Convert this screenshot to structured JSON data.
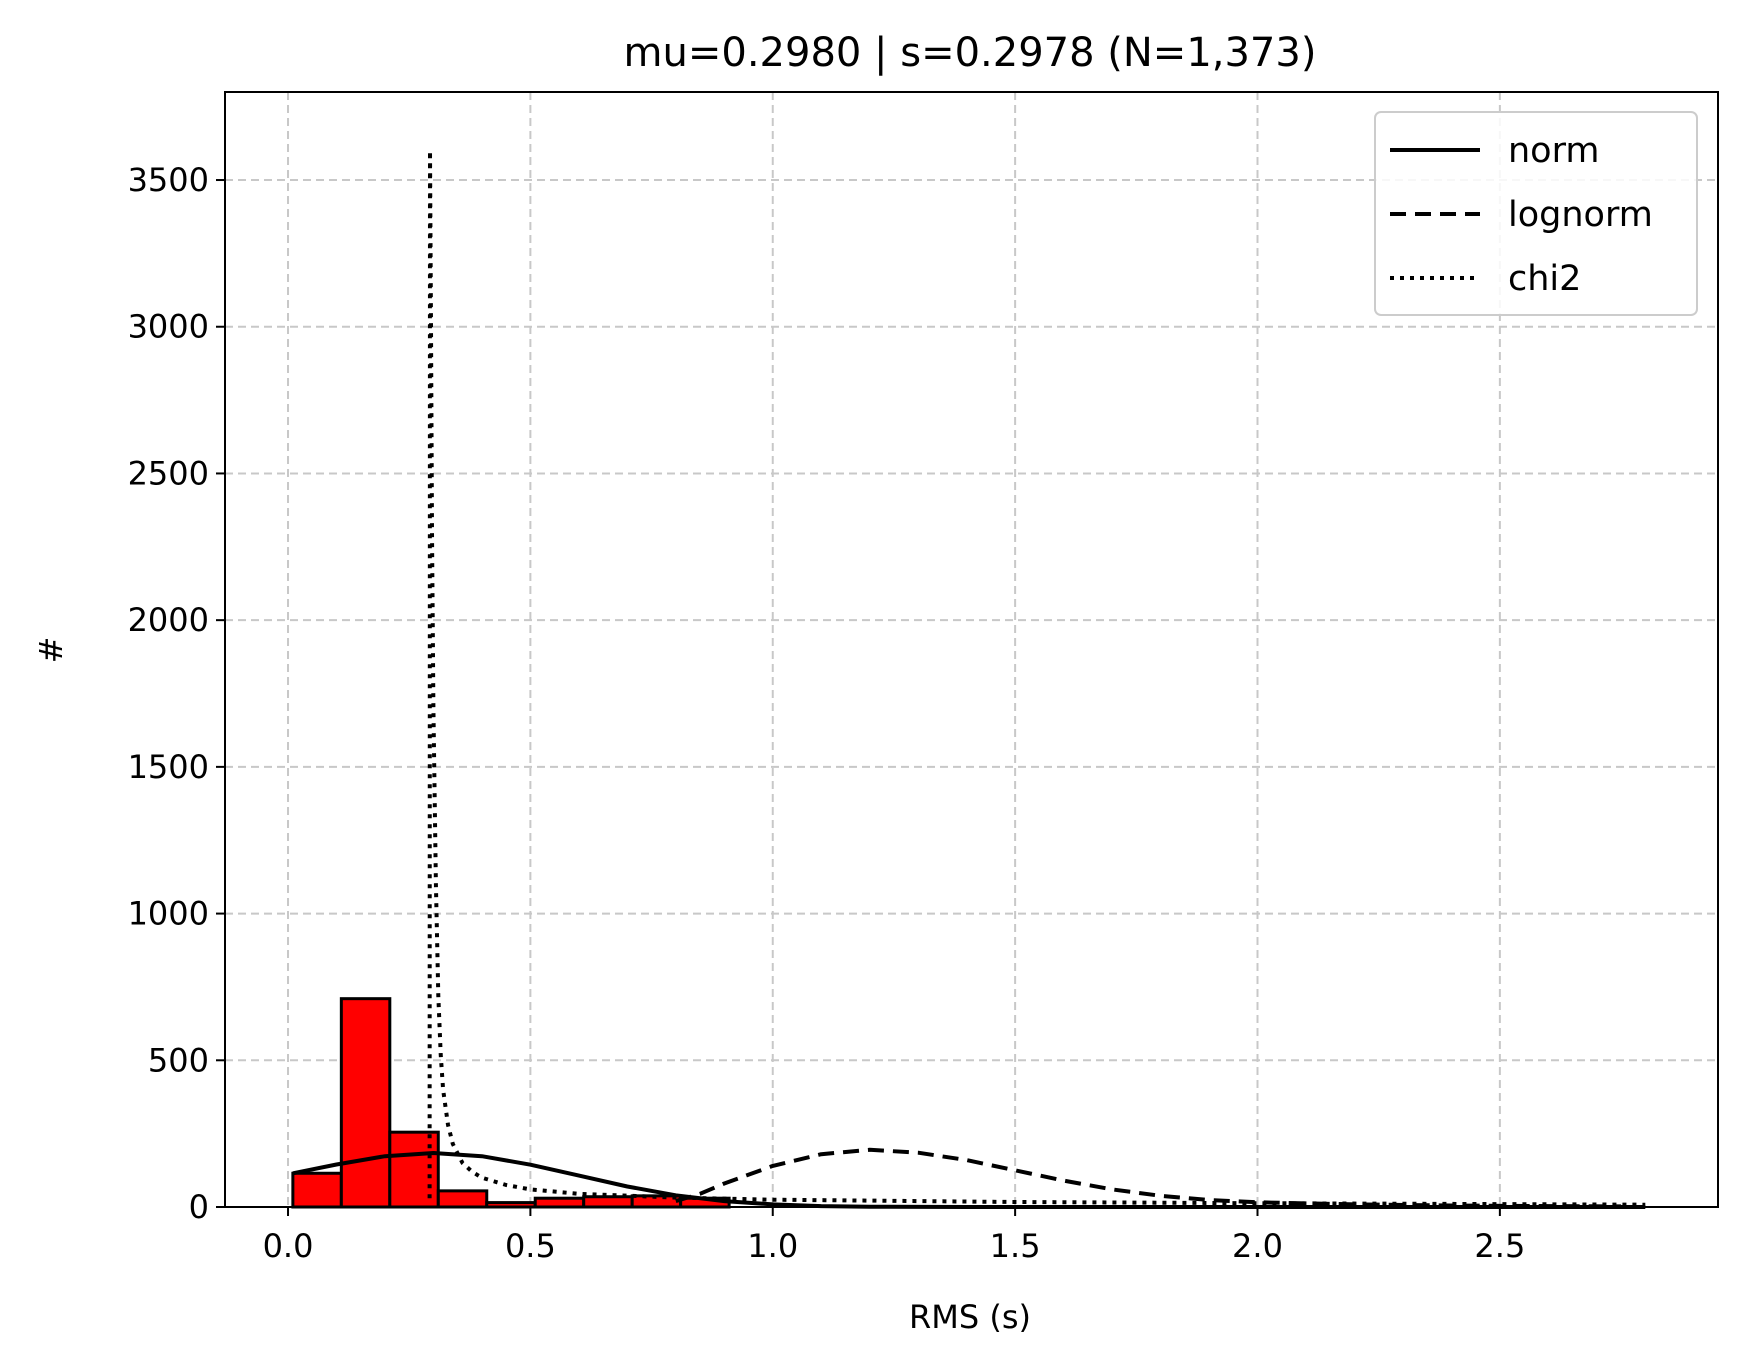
{
  "chart_data": {
    "type": "bar",
    "title": "mu=0.2980 | s=0.2978 (N=1,373)",
    "xlabel": "RMS (s)",
    "ylabel": "#",
    "xlim": [
      -0.13,
      2.95
    ],
    "ylim": [
      0,
      3800
    ],
    "xticks": [
      0.0,
      0.5,
      1.0,
      1.5,
      2.0,
      2.5
    ],
    "xtick_labels": [
      "0.0",
      "0.5",
      "1.0",
      "1.5",
      "2.0",
      "2.5"
    ],
    "yticks": [
      0,
      500,
      1000,
      1500,
      2000,
      2500,
      3000,
      3500
    ],
    "ytick_labels": [
      "0",
      "500",
      "1000",
      "1500",
      "2000",
      "2500",
      "3000",
      "3500"
    ],
    "grid": true,
    "legend_position": "top-right",
    "bar_color": "#ff0000",
    "bar_edge_color": "#000000",
    "histogram": {
      "bin_edges": [
        0.01,
        0.11,
        0.21,
        0.31,
        0.41,
        0.51,
        0.61,
        0.71,
        0.81,
        0.91
      ],
      "counts": [
        115,
        710,
        255,
        55,
        15,
        30,
        35,
        38,
        30
      ]
    },
    "series": [
      {
        "name": "norm",
        "style": "solid",
        "x": [
          0.01,
          0.1,
          0.2,
          0.3,
          0.4,
          0.5,
          0.6,
          0.7,
          0.8,
          0.9,
          1.0,
          1.1,
          1.2,
          1.4,
          1.6,
          1.8,
          2.0,
          2.2,
          2.4,
          2.6,
          2.8
        ],
        "y": [
          115,
          145,
          173,
          184,
          173,
          144,
          107,
          70,
          40,
          20,
          9,
          3,
          1,
          0,
          0,
          0,
          0,
          0,
          0,
          0,
          0
        ]
      },
      {
        "name": "lognorm",
        "style": "dashed",
        "x": [
          0.8,
          0.85,
          0.9,
          1.0,
          1.1,
          1.2,
          1.3,
          1.4,
          1.5,
          1.6,
          1.7,
          1.8,
          1.9,
          2.0,
          2.2,
          2.4,
          2.6,
          2.75
        ],
        "y": [
          20,
          45,
          80,
          140,
          180,
          195,
          185,
          160,
          125,
          90,
          60,
          38,
          24,
          16,
          9,
          5,
          3,
          2
        ]
      },
      {
        "name": "chi2",
        "style": "dotted",
        "x": [
          0.292,
          0.293,
          0.295,
          0.297,
          0.3,
          0.305,
          0.31,
          0.315,
          0.32,
          0.33,
          0.34,
          0.36,
          0.38,
          0.4,
          0.45,
          0.5,
          0.6,
          0.8,
          1.0,
          1.5,
          2.0,
          2.5,
          2.8
        ],
        "y": [
          30,
          3600,
          3000,
          2300,
          1700,
          1100,
          720,
          520,
          400,
          280,
          215,
          150,
          120,
          100,
          75,
          60,
          45,
          32,
          25,
          17,
          13,
          10,
          8
        ]
      }
    ]
  }
}
